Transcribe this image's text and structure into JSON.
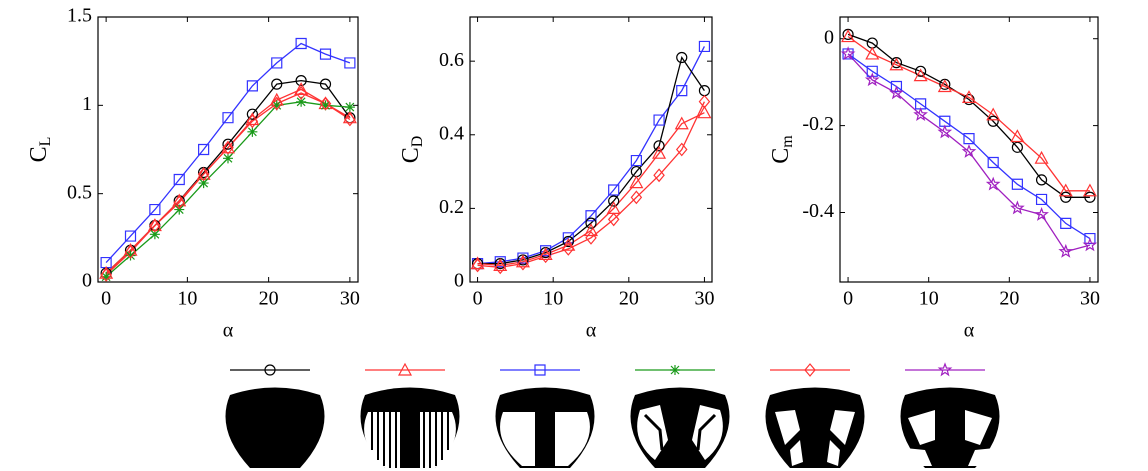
{
  "chart_data": [
    {
      "type": "line",
      "ylabel": "C",
      "ylabel_subscript": "L",
      "xlabel": "α",
      "x": [
        0,
        3,
        6,
        9,
        12,
        15,
        18,
        21,
        24,
        27,
        30
      ],
      "xlim": [
        -1,
        31
      ],
      "xticks": [
        0,
        10,
        20,
        30
      ],
      "ylim": [
        0,
        1.5
      ],
      "yticks": [
        0,
        0.5,
        1,
        1.5
      ],
      "series": [
        {
          "color": "#3333ff",
          "marker": "square",
          "values": [
            0.11,
            0.26,
            0.41,
            0.58,
            0.75,
            0.93,
            1.11,
            1.24,
            1.35,
            1.29,
            1.24
          ]
        },
        {
          "color": "#000000",
          "marker": "circle",
          "values": [
            0.05,
            0.18,
            0.32,
            0.46,
            0.62,
            0.78,
            0.95,
            1.12,
            1.14,
            1.12,
            0.93
          ]
        },
        {
          "color": "#ff3333",
          "marker": "triangle",
          "values": [
            0.05,
            0.18,
            0.32,
            0.46,
            0.61,
            0.76,
            0.92,
            1.03,
            1.09,
            1.01,
            0.93
          ]
        },
        {
          "color": "#1a9a1a",
          "marker": "asterisk",
          "values": [
            0.03,
            0.15,
            0.27,
            0.41,
            0.56,
            0.7,
            0.85,
            1.0,
            1.02,
            1.0,
            0.99
          ]
        },
        {
          "color": "#ff3333",
          "marker": "diamond",
          "values": [
            0.04,
            0.17,
            0.32,
            0.45,
            0.61,
            0.76,
            0.91,
            1.01,
            1.07,
            1.01,
            0.92
          ]
        }
      ]
    },
    {
      "type": "line",
      "ylabel": "C",
      "ylabel_subscript": "D",
      "xlabel": "α",
      "x": [
        0,
        3,
        6,
        9,
        12,
        15,
        18,
        21,
        24,
        27,
        30
      ],
      "xlim": [
        -1,
        31
      ],
      "xticks": [
        0,
        10,
        20,
        30
      ],
      "ylim": [
        0,
        0.72
      ],
      "yticks": [
        0,
        0.2,
        0.4,
        0.6
      ],
      "series": [
        {
          "color": "#3333ff",
          "marker": "square",
          "values": [
            0.05,
            0.055,
            0.065,
            0.085,
            0.12,
            0.18,
            0.25,
            0.33,
            0.44,
            0.52,
            0.64
          ]
        },
        {
          "color": "#000000",
          "marker": "circle",
          "values": [
            0.05,
            0.05,
            0.06,
            0.08,
            0.11,
            0.16,
            0.22,
            0.3,
            0.37,
            0.61,
            0.52
          ]
        },
        {
          "color": "#ff3333",
          "marker": "triangle",
          "values": [
            0.05,
            0.045,
            0.055,
            0.075,
            0.1,
            0.14,
            0.2,
            0.27,
            0.35,
            0.43,
            0.46
          ]
        },
        {
          "color": "#ff3333",
          "marker": "diamond",
          "values": [
            0.045,
            0.04,
            0.05,
            0.07,
            0.09,
            0.12,
            0.17,
            0.23,
            0.29,
            0.36,
            0.49
          ]
        }
      ]
    },
    {
      "type": "line",
      "ylabel": "C",
      "ylabel_subscript": "m",
      "xlabel": "α",
      "x": [
        0,
        3,
        6,
        9,
        12,
        15,
        18,
        21,
        24,
        27,
        30
      ],
      "xlim": [
        -1,
        31
      ],
      "xticks": [
        0,
        10,
        20,
        30
      ],
      "ylim": [
        -0.56,
        0.05
      ],
      "yticks": [
        -0.4,
        -0.2,
        0
      ],
      "series": [
        {
          "color": "#000000",
          "marker": "circle",
          "values": [
            0.01,
            -0.01,
            -0.055,
            -0.075,
            -0.105,
            -0.14,
            -0.19,
            -0.25,
            -0.325,
            -0.365,
            -0.365
          ]
        },
        {
          "color": "#ff3333",
          "marker": "triangle",
          "values": [
            0.005,
            -0.035,
            -0.06,
            -0.085,
            -0.11,
            -0.135,
            -0.175,
            -0.225,
            -0.275,
            -0.35,
            -0.35
          ]
        },
        {
          "color": "#3333ff",
          "marker": "square",
          "values": [
            -0.035,
            -0.075,
            -0.11,
            -0.15,
            -0.19,
            -0.23,
            -0.285,
            -0.335,
            -0.37,
            -0.425,
            -0.46
          ]
        },
        {
          "color": "#a020c0",
          "marker": "star",
          "values": [
            -0.035,
            -0.095,
            -0.125,
            -0.175,
            -0.215,
            -0.26,
            -0.335,
            -0.39,
            -0.405,
            -0.49,
            -0.475
          ]
        }
      ]
    }
  ],
  "legend": [
    {
      "color": "#000000",
      "marker": "circle"
    },
    {
      "color": "#ff3333",
      "marker": "triangle"
    },
    {
      "color": "#3333ff",
      "marker": "square"
    },
    {
      "color": "#1a9a1a",
      "marker": "asterisk"
    },
    {
      "color": "#ff3333",
      "marker": "diamond"
    },
    {
      "color": "#a020c0",
      "marker": "star"
    }
  ]
}
